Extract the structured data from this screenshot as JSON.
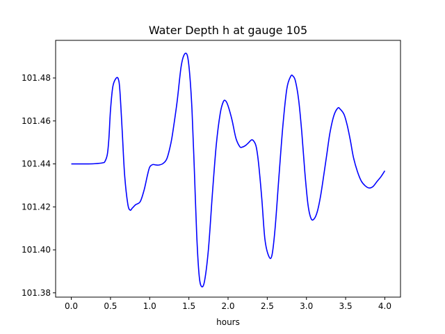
{
  "chart_data": {
    "type": "line",
    "title": "Water Depth h at gauge 105",
    "xlabel": "hours",
    "ylabel": "",
    "xlim": [
      -0.2,
      4.2
    ],
    "ylim": [
      101.378,
      101.4975
    ],
    "xticks": [
      0.0,
      0.5,
      1.0,
      1.5,
      2.0,
      2.5,
      3.0,
      3.5,
      4.0
    ],
    "xtick_labels": [
      "0.0",
      "0.5",
      "1.0",
      "1.5",
      "2.0",
      "2.5",
      "3.0",
      "3.5",
      "4.0"
    ],
    "yticks": [
      101.38,
      101.4,
      101.42,
      101.44,
      101.46,
      101.48
    ],
    "ytick_labels": [
      "101.38",
      "101.40",
      "101.42",
      "101.44",
      "101.46",
      "101.48"
    ],
    "grid": false,
    "series": [
      {
        "color": "#0000ff",
        "x": [
          0.0,
          0.2,
          0.3,
          0.4,
          0.43,
          0.46,
          0.48,
          0.5,
          0.53,
          0.57,
          0.6,
          0.62,
          0.65,
          0.68,
          0.72,
          0.75,
          0.78,
          0.82,
          0.88,
          0.93,
          0.97,
          1.0,
          1.04,
          1.08,
          1.12,
          1.17,
          1.22,
          1.27,
          1.3,
          1.35,
          1.4,
          1.44,
          1.48,
          1.51,
          1.54,
          1.57,
          1.6,
          1.63,
          1.66,
          1.7,
          1.75,
          1.8,
          1.85,
          1.9,
          1.94,
          1.97,
          2.0,
          2.05,
          2.1,
          2.15,
          2.18,
          2.22,
          2.26,
          2.3,
          2.33,
          2.36,
          2.39,
          2.43,
          2.47,
          2.52,
          2.56,
          2.6,
          2.65,
          2.7,
          2.75,
          2.8,
          2.83,
          2.86,
          2.9,
          2.94,
          2.98,
          3.02,
          3.06,
          3.1,
          3.14,
          3.18,
          3.22,
          3.26,
          3.3,
          3.35,
          3.4,
          3.43,
          3.48,
          3.52,
          3.56,
          3.6,
          3.65,
          3.7,
          3.75,
          3.8,
          3.85,
          3.9,
          3.95,
          4.0
        ],
        "y": [
          101.44,
          101.44,
          101.4401,
          101.4405,
          101.4412,
          101.4445,
          101.452,
          101.465,
          101.476,
          101.4798,
          101.4795,
          101.474,
          101.455,
          101.435,
          101.4215,
          101.4185,
          101.4195,
          101.421,
          101.4225,
          101.428,
          101.4345,
          101.4385,
          101.4397,
          101.4395,
          101.4395,
          101.4402,
          101.4425,
          101.4495,
          101.456,
          101.469,
          101.485,
          101.4908,
          101.4905,
          101.482,
          101.465,
          101.437,
          101.407,
          101.3885,
          101.383,
          101.3855,
          101.4005,
          101.426,
          101.449,
          101.4635,
          101.469,
          101.4693,
          101.467,
          101.4605,
          101.452,
          101.448,
          101.4478,
          101.4485,
          101.4498,
          101.4512,
          101.4505,
          101.4478,
          101.44,
          101.424,
          101.405,
          101.397,
          101.3975,
          101.41,
          101.4345,
          101.458,
          101.475,
          101.4808,
          101.4808,
          101.4785,
          101.47,
          101.455,
          101.436,
          101.421,
          101.4145,
          101.4145,
          101.418,
          101.425,
          101.4345,
          101.4445,
          101.4545,
          101.4625,
          101.466,
          101.4655,
          101.463,
          101.458,
          101.451,
          101.443,
          101.4365,
          101.432,
          101.4298,
          101.4288,
          101.4295,
          101.4318,
          101.434,
          101.4368
        ]
      }
    ]
  }
}
